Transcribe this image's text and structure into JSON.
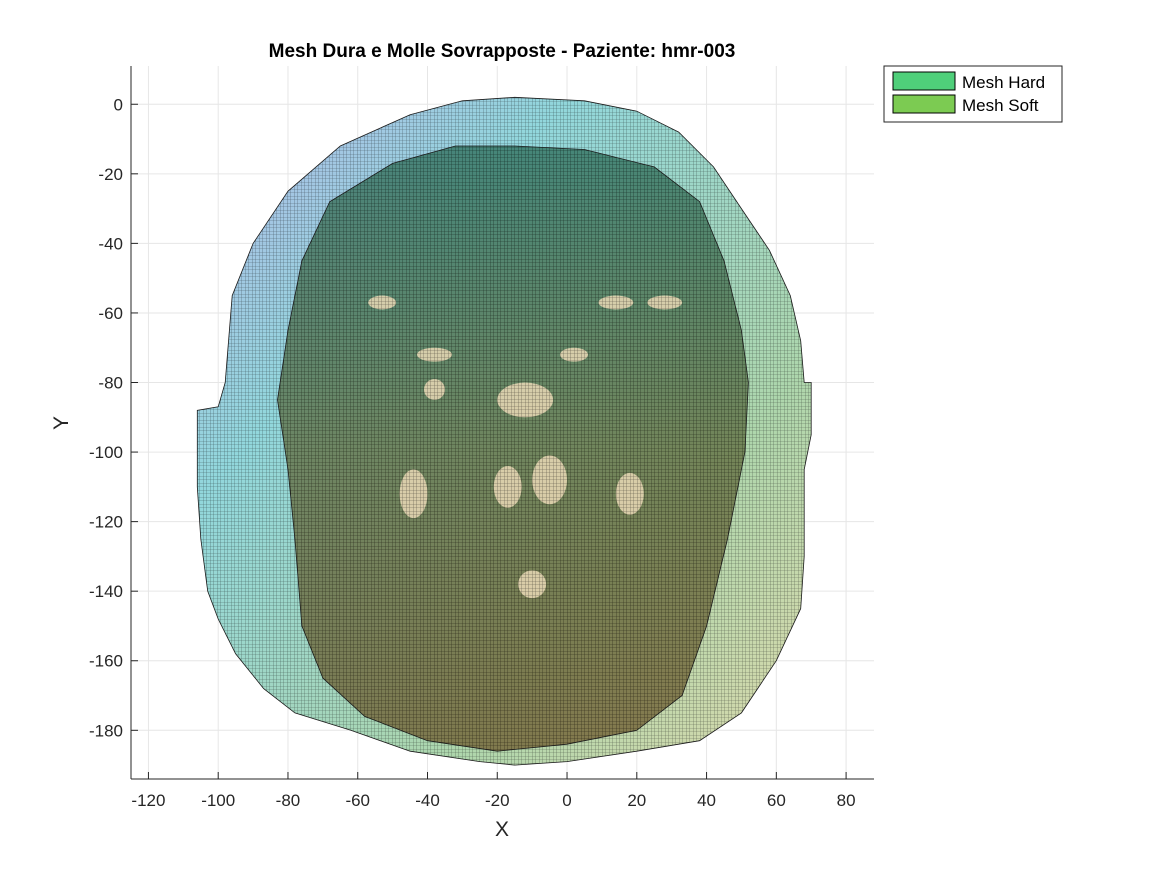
{
  "chart_data": {
    "type": "scatter",
    "title": "Mesh Dura e Molle Sovrapposte - Paziente: hmr-003",
    "xlabel": "X",
    "ylabel": "Y",
    "xlim": [
      -125,
      88
    ],
    "ylim": [
      -194,
      11
    ],
    "x_ticks": [
      -120,
      -100,
      -80,
      -60,
      -40,
      -20,
      0,
      20,
      40,
      60,
      80
    ],
    "y_ticks": [
      0,
      -20,
      -40,
      -60,
      -80,
      -100,
      -120,
      -140,
      -160,
      -180
    ],
    "grid": true,
    "legend_position": "outside-top-right",
    "series": [
      {
        "name": "Mesh Hard",
        "color": "#4fcf7a",
        "outline": [
          [
            -15,
            2
          ],
          [
            5,
            1
          ],
          [
            20,
            -2
          ],
          [
            32,
            -8
          ],
          [
            42,
            -18
          ],
          [
            50,
            -30
          ],
          [
            58,
            -42
          ],
          [
            64,
            -55
          ],
          [
            67,
            -68
          ],
          [
            68,
            -80
          ],
          [
            70,
            -80
          ],
          [
            70,
            -95
          ],
          [
            68,
            -105
          ],
          [
            68,
            -130
          ],
          [
            67,
            -145
          ],
          [
            60,
            -160
          ],
          [
            50,
            -175
          ],
          [
            38,
            -183
          ],
          [
            20,
            -186
          ],
          [
            0,
            -189
          ],
          [
            -15,
            -190
          ],
          [
            -25,
            -189
          ],
          [
            -45,
            -186
          ],
          [
            -62,
            -180
          ],
          [
            -78,
            -175
          ],
          [
            -87,
            -168
          ],
          [
            -95,
            -158
          ],
          [
            -100,
            -148
          ],
          [
            -103,
            -140
          ],
          [
            -105,
            -125
          ],
          [
            -106,
            -110
          ],
          [
            -106,
            -88
          ],
          [
            -100,
            -87
          ],
          [
            -98,
            -80
          ],
          [
            -96,
            -55
          ],
          [
            -90,
            -40
          ],
          [
            -80,
            -25
          ],
          [
            -65,
            -12
          ],
          [
            -45,
            -3
          ],
          [
            -30,
            1
          ]
        ]
      },
      {
        "name": "Mesh Soft",
        "color": "#7ccb52",
        "outline": [
          [
            -15,
            -12
          ],
          [
            5,
            -13
          ],
          [
            25,
            -18
          ],
          [
            38,
            -28
          ],
          [
            45,
            -45
          ],
          [
            50,
            -65
          ],
          [
            52,
            -80
          ],
          [
            51,
            -100
          ],
          [
            46,
            -125
          ],
          [
            40,
            -150
          ],
          [
            33,
            -170
          ],
          [
            20,
            -180
          ],
          [
            0,
            -184
          ],
          [
            -20,
            -186
          ],
          [
            -40,
            -183
          ],
          [
            -58,
            -176
          ],
          [
            -70,
            -165
          ],
          [
            -76,
            -150
          ],
          [
            -78,
            -125
          ],
          [
            -80,
            -105
          ],
          [
            -83,
            -85
          ],
          [
            -80,
            -65
          ],
          [
            -76,
            -45
          ],
          [
            -68,
            -28
          ],
          [
            -50,
            -17
          ],
          [
            -32,
            -12
          ]
        ]
      }
    ],
    "holes": [
      {
        "x": -5,
        "y": -108,
        "rx": 5,
        "ry": 7
      },
      {
        "x": -17,
        "y": -110,
        "rx": 4,
        "ry": 6
      },
      {
        "x": -12,
        "y": -85,
        "rx": 8,
        "ry": 5
      },
      {
        "x": -38,
        "y": -72,
        "rx": 5,
        "ry": 2
      },
      {
        "x": 2,
        "y": -72,
        "rx": 4,
        "ry": 2
      },
      {
        "x": -38,
        "y": -82,
        "rx": 3,
        "ry": 3
      },
      {
        "x": 14,
        "y": -57,
        "rx": 5,
        "ry": 2
      },
      {
        "x": 28,
        "y": -57,
        "rx": 5,
        "ry": 2
      },
      {
        "x": -53,
        "y": -57,
        "rx": 4,
        "ry": 2
      },
      {
        "x": 18,
        "y": -112,
        "rx": 4,
        "ry": 6
      },
      {
        "x": -44,
        "y": -112,
        "rx": 4,
        "ry": 7
      },
      {
        "x": -10,
        "y": -138,
        "rx": 4,
        "ry": 4
      }
    ]
  }
}
